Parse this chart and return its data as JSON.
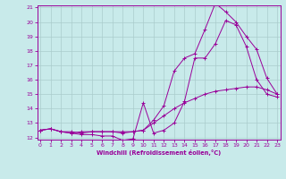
{
  "xlabel": "Windchill (Refroidissement éolien,°C)",
  "bg_color": "#c8eaea",
  "line_color": "#990099",
  "grid_color": "#aacccc",
  "xmin": 0,
  "xmax": 23,
  "ymin": 12,
  "ymax": 21,
  "line1_x": [
    0,
    1,
    2,
    3,
    4,
    5,
    6,
    7,
    8,
    9,
    10,
    11,
    12,
    13,
    14,
    15,
    16,
    17,
    18,
    19,
    20,
    21,
    22,
    23
  ],
  "line1_y": [
    12.5,
    12.6,
    12.4,
    12.4,
    12.3,
    12.4,
    12.4,
    12.4,
    12.3,
    12.4,
    12.5,
    13.0,
    13.5,
    14.0,
    14.4,
    14.7,
    15.0,
    15.2,
    15.3,
    15.4,
    15.5,
    15.5,
    15.3,
    15.0
  ],
  "line2_x": [
    0,
    1,
    2,
    3,
    4,
    5,
    6,
    7,
    8,
    9,
    10,
    11,
    12,
    13,
    14,
    15,
    16,
    17,
    18,
    19,
    20,
    21,
    22,
    23
  ],
  "line2_y": [
    12.5,
    12.6,
    12.4,
    12.3,
    12.2,
    12.2,
    12.1,
    12.1,
    11.8,
    11.9,
    14.4,
    12.3,
    12.5,
    13.0,
    14.5,
    17.5,
    17.5,
    18.5,
    20.1,
    19.8,
    18.3,
    16.0,
    15.0,
    14.8
  ],
  "line3_x": [
    0,
    1,
    2,
    3,
    4,
    5,
    6,
    7,
    8,
    9,
    10,
    11,
    12,
    13,
    14,
    15,
    16,
    17,
    18,
    19,
    20,
    21,
    22,
    23
  ],
  "line3_y": [
    12.5,
    12.6,
    12.4,
    12.3,
    12.4,
    12.4,
    12.4,
    12.4,
    12.4,
    12.4,
    12.5,
    13.2,
    14.2,
    16.6,
    17.5,
    17.8,
    19.5,
    21.3,
    20.7,
    20.0,
    19.0,
    18.1,
    16.1,
    15.0
  ]
}
